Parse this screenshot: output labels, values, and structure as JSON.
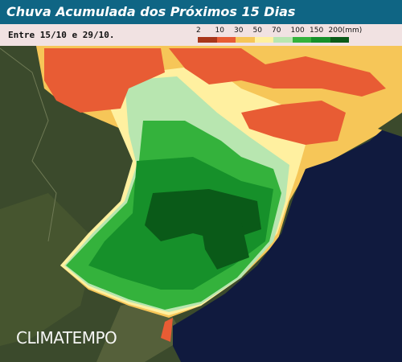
{
  "header": {
    "title": "Chuva Acumulada dos Próximos 15 Dias",
    "subtitle": "Entre 15/10 e 29/10."
  },
  "legend": {
    "labels": [
      "2",
      "10",
      "30",
      "50",
      "70",
      "100",
      "150",
      "200(mm)"
    ],
    "colors": [
      "#a8361a",
      "#e85c34",
      "#f6c658",
      "#fff0a0",
      "#b8e6b0",
      "#34b23c",
      "#16902a",
      "#0a5a18"
    ]
  },
  "watermark": "CLIMATEMPO"
}
